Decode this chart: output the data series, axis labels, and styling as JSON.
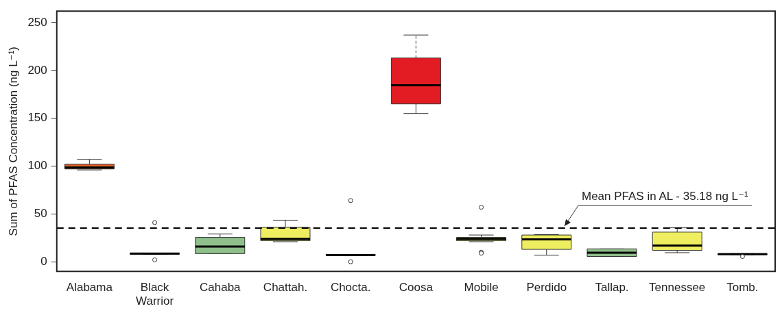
{
  "chart_data": {
    "type": "box",
    "ylabel": "Sum of PFAS Concentration (ng L⁻¹)",
    "categories": [
      "Alabama",
      "Black Warrior",
      "Cahaba",
      "Chattah.",
      "Chocta.",
      "Coosa",
      "Mobile",
      "Perdido",
      "Tallap.",
      "Tennessee",
      "Tomb."
    ],
    "colors": [
      "#e0622a",
      "#8fbf8a",
      "#8fbf8a",
      "#eeee60",
      "#8fbf8a",
      "#e31b23",
      "#eeee60",
      "#eeee60",
      "#8fbf8a",
      "#eeee60",
      "#8fbf8a"
    ],
    "boxes": [
      {
        "low": 96,
        "q1": 97,
        "median": 98.5,
        "q3": 102,
        "high": 107
      },
      {
        "low": 8,
        "q1": 8,
        "median": 8.5,
        "q3": 9,
        "high": 9,
        "outliers": [
          41,
          2
        ]
      },
      {
        "low": 8.5,
        "q1": 8.5,
        "median": 16,
        "q3": 25.5,
        "high": 29
      },
      {
        "low": 21,
        "q1": 22,
        "median": 24,
        "q3": 36,
        "high": 43.5
      },
      {
        "low": 7,
        "q1": 7,
        "median": 7,
        "q3": 7.5,
        "high": 7.5,
        "outliers": [
          64,
          0
        ]
      },
      {
        "low": 155,
        "q1": 165,
        "median": 184.5,
        "q3": 213,
        "high": 237
      },
      {
        "low": 21,
        "q1": 22,
        "median": 24,
        "q3": 25.5,
        "high": 28,
        "outliers": [
          57,
          10,
          9
        ]
      },
      {
        "low": 7,
        "q1": 13,
        "median": 23.5,
        "q3": 28,
        "high": 28.5
      },
      {
        "low": 5.5,
        "q1": 5.5,
        "median": 9.5,
        "q3": 13.5,
        "high": 13.5
      },
      {
        "low": 9.5,
        "q1": 12,
        "median": 17,
        "q3": 31,
        "high": 35.5
      },
      {
        "low": 7.5,
        "q1": 7.5,
        "median": 8,
        "q3": 8,
        "high": 8.5,
        "outliers": [
          5.5
        ]
      }
    ],
    "ylim": [
      -10,
      262
    ],
    "yticks": [
      0,
      50,
      100,
      150,
      200,
      250
    ],
    "grid": false,
    "legend": false,
    "ref_lines": [
      {
        "axis": "y",
        "value": 35.18,
        "label": "Mean PFAS in AL - 35.18 ng L⁻¹",
        "color": "#000000",
        "line_style": "dashed"
      }
    ]
  }
}
